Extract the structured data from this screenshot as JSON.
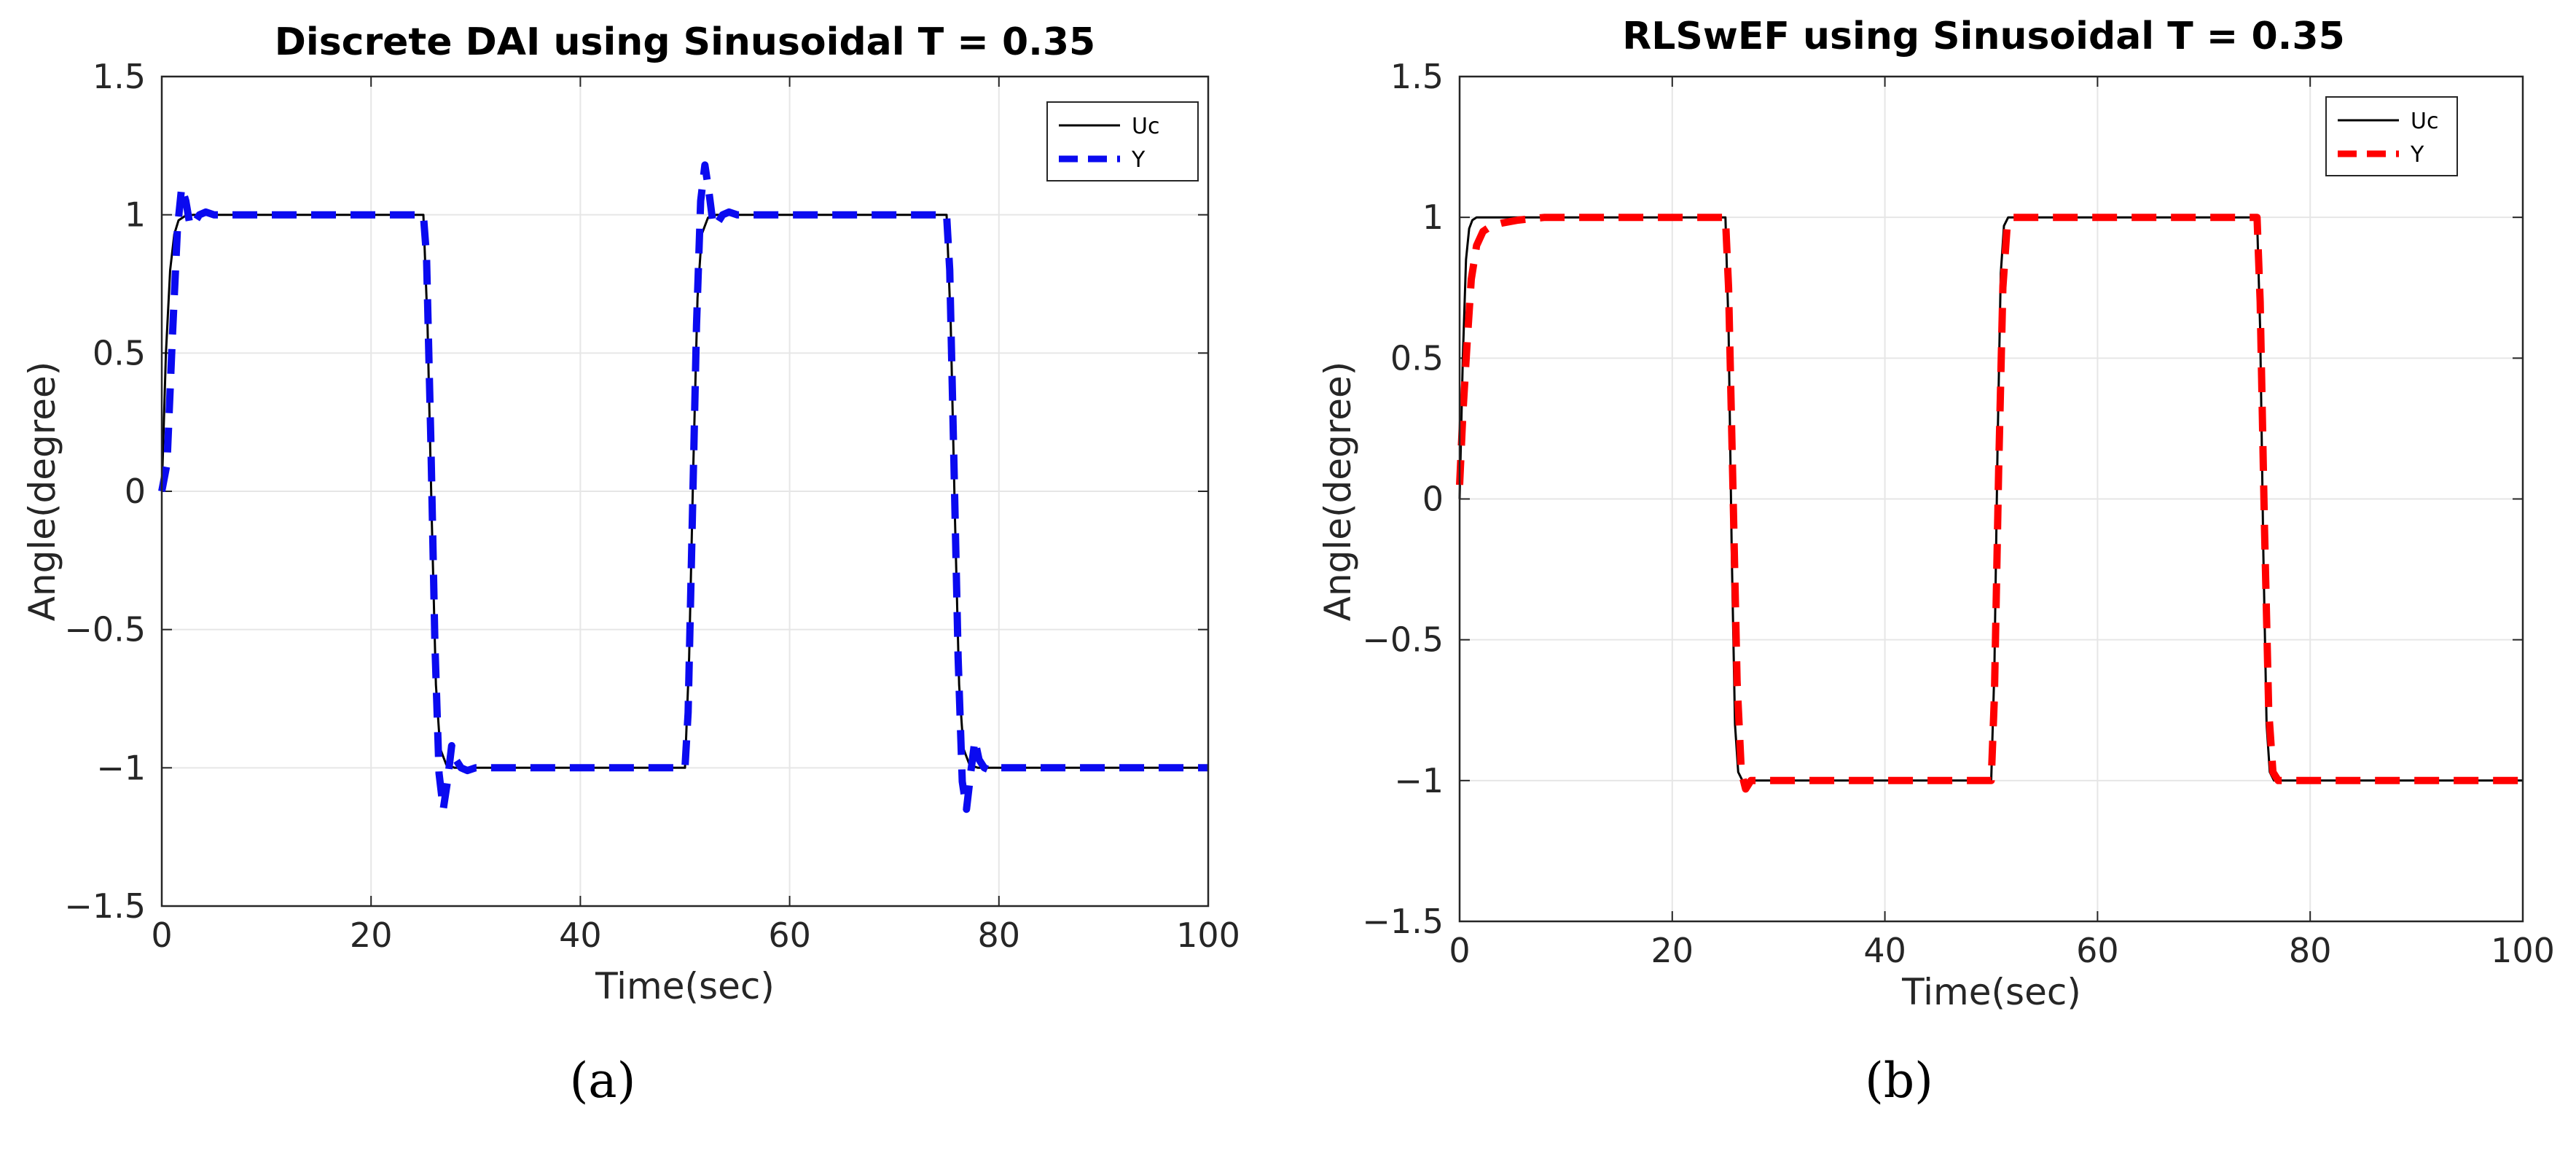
{
  "chart_data": [
    {
      "type": "line",
      "panel_label": "(a)",
      "title": "Discrete DAI using Sinusoidal T = 0.35",
      "xlabel": "Time(sec)",
      "ylabel": "Angle(degree)",
      "xlim": [
        0,
        100
      ],
      "ylim": [
        -1.5,
        1.5
      ],
      "xticks": [
        0,
        20,
        40,
        60,
        80,
        100
      ],
      "xtick_labels": [
        "0",
        "20",
        "40",
        "60",
        "80",
        "100"
      ],
      "yticks": [
        -1.5,
        -1,
        -0.5,
        0,
        0.5,
        1,
        1.5
      ],
      "ytick_labels": [
        "−1.5",
        "−1",
        "−0.5",
        "0",
        "0.5",
        "1",
        "1.5"
      ],
      "grid": true,
      "legend_position": "top-right",
      "series": [
        {
          "name": "Uc",
          "color": "#000000",
          "style": "solid",
          "x": [
            0,
            0.4,
            0.8,
            1.2,
            1.6,
            2.2,
            3,
            25,
            25.4,
            25.8,
            26.2,
            26.6,
            27.2,
            28,
            50,
            50.4,
            50.8,
            51.2,
            51.6,
            52.2,
            53,
            75,
            75.4,
            75.8,
            76.2,
            76.6,
            77.2,
            78,
            100
          ],
          "values": [
            0,
            0.5,
            0.8,
            0.93,
            0.98,
            0.995,
            1,
            1,
            0.6,
            -0.1,
            -0.7,
            -0.93,
            -0.99,
            -1,
            -1,
            -0.6,
            0.1,
            0.7,
            0.93,
            0.99,
            1,
            1,
            0.6,
            -0.1,
            -0.7,
            -0.93,
            -0.99,
            -1,
            -1
          ]
        },
        {
          "name": "Y",
          "color": "#0a0af0",
          "style": "dashed",
          "x": [
            0,
            0.5,
            1,
            1.5,
            1.9,
            2.3,
            2.7,
            3.1,
            3.6,
            4.2,
            5,
            25,
            25.3,
            25.7,
            26.1,
            26.5,
            26.9,
            27.3,
            27.7,
            28.1,
            28.6,
            29.2,
            30,
            50,
            50.3,
            50.7,
            51.1,
            51.5,
            51.9,
            52.3,
            52.7,
            53.1,
            53.6,
            54.2,
            55,
            75,
            75.3,
            75.7,
            76.1,
            76.5,
            76.9,
            77.3,
            77.7,
            78.1,
            78.6,
            79.2,
            80,
            100
          ],
          "values": [
            0,
            0.1,
            0.55,
            0.95,
            1.1,
            1.05,
            0.96,
            0.97,
            1.0,
            1.01,
            1.0,
            1.0,
            0.85,
            0.2,
            -0.55,
            -1.02,
            -1.15,
            -1.05,
            -0.92,
            -0.97,
            -1.0,
            -1.01,
            -1.0,
            -1.0,
            -0.8,
            -0.1,
            0.6,
            1.05,
            1.18,
            1.08,
            0.96,
            0.97,
            1.0,
            1.01,
            1.0,
            1.0,
            0.8,
            0.1,
            -0.6,
            -1.05,
            -1.15,
            -1.02,
            -0.9,
            -0.97,
            -1.0,
            -1.01,
            -1.0,
            -1.0
          ]
        }
      ]
    },
    {
      "type": "line",
      "panel_label": "(b)",
      "title": "RLSwEF using Sinusoidal T = 0.35",
      "xlabel": "Time(sec)",
      "ylabel": "Angle(degree)",
      "xlim": [
        0,
        100
      ],
      "ylim": [
        -1.5,
        1.5
      ],
      "xticks": [
        0,
        20,
        40,
        60,
        80,
        100
      ],
      "xtick_labels": [
        "0",
        "20",
        "40",
        "60",
        "80",
        "100"
      ],
      "yticks": [
        -1.5,
        -1,
        -0.5,
        0,
        0.5,
        1,
        1.5
      ],
      "ytick_labels": [
        "−1.5",
        "−1",
        "−0.5",
        "0",
        "0.5",
        "1",
        "1.5"
      ],
      "grid": true,
      "legend_position": "top-right",
      "series": [
        {
          "name": "Uc",
          "color": "#000000",
          "style": "solid",
          "x": [
            0,
            0.3,
            0.6,
            0.9,
            1.2,
            1.6,
            2,
            25,
            25.3,
            25.6,
            25.9,
            26.2,
            26.6,
            27,
            50,
            50.3,
            50.6,
            50.9,
            51.2,
            51.6,
            52,
            75,
            75.3,
            75.6,
            75.9,
            76.2,
            76.6,
            77,
            100
          ],
          "values": [
            0,
            0.5,
            0.85,
            0.96,
            0.99,
            1.0,
            1,
            1,
            0.6,
            -0.2,
            -0.8,
            -0.97,
            -1.0,
            -1,
            -1,
            -0.6,
            0.2,
            0.8,
            0.97,
            1.0,
            1,
            1,
            0.6,
            -0.2,
            -0.8,
            -0.97,
            -1.0,
            -1,
            -1
          ]
        },
        {
          "name": "Y",
          "color": "#ff0000",
          "style": "dashed",
          "x": [
            0,
            0.3,
            0.7,
            1.1,
            1.6,
            2.2,
            3,
            4,
            5.5,
            8,
            25,
            25.3,
            25.7,
            26.1,
            26.5,
            26.9,
            27.4,
            28.2,
            30,
            50,
            50.3,
            50.7,
            51.1,
            51.5,
            52,
            53,
            75,
            75.3,
            75.7,
            76.1,
            76.5,
            77,
            78,
            100
          ],
          "values": [
            0.05,
            0.3,
            0.55,
            0.78,
            0.9,
            0.95,
            0.97,
            0.98,
            0.99,
            1.0,
            1.0,
            0.75,
            0.05,
            -0.65,
            -0.97,
            -1.03,
            -1.0,
            -1.0,
            -1.0,
            -1.0,
            -0.7,
            0.1,
            0.75,
            0.97,
            1.0,
            1.0,
            1.0,
            0.7,
            -0.1,
            -0.75,
            -0.97,
            -1.0,
            -1.0,
            -1.0
          ]
        }
      ]
    }
  ]
}
